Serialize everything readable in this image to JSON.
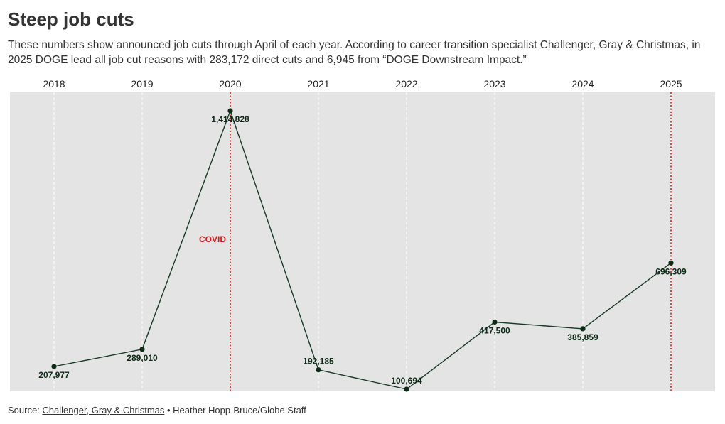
{
  "header": {
    "title": "Steep job cuts",
    "subtitle": "These numbers show announced job cuts through April of each year. According to career transition specialist Challenger, Gray & Christmas, in 2025 DOGE lead all job cut reasons with 283,172 direct cuts and 6,945 from “DOGE Downstream Impact.”"
  },
  "footer": {
    "source_label": "Source: ",
    "source_link": "Challenger, Gray & Christmas",
    "credit": " • Heather Hopp-Bruce/Globe Staff"
  },
  "colors": {
    "plot_bg": "#e4e4e4",
    "line": "#173a24",
    "marker": "#0d2a17",
    "label": "#0d2a17",
    "annotation": "#d7191c",
    "grid": "#ffffff"
  },
  "chart_data": {
    "type": "line",
    "title": "Steep job cuts",
    "xlabel": "",
    "ylabel": "",
    "x": [
      2018,
      2019,
      2020,
      2021,
      2022,
      2023,
      2024,
      2025
    ],
    "tick_labels": [
      "2018",
      "2019",
      "2020",
      "2021",
      "2022",
      "2023",
      "2024",
      "2025"
    ],
    "values": [
      207977,
      289010,
      1414828,
      192185,
      100694,
      417500,
      385859,
      696309
    ],
    "data_labels": [
      "207,977",
      "289,010",
      "1,414,828",
      "192,185",
      "100,694",
      "417,500",
      "385,859",
      "696,309"
    ],
    "label_positions": [
      "below",
      "below",
      "below",
      "above",
      "above",
      "below",
      "below",
      "below"
    ],
    "ylim": [
      100000,
      1500000
    ],
    "x_axis_position": "top",
    "grid": "vertical-dashed",
    "annotations": [
      {
        "x": 2020,
        "label": "COVID",
        "label_side": "left"
      },
      {
        "x": 2025,
        "label": "",
        "label_side": "none"
      }
    ]
  }
}
